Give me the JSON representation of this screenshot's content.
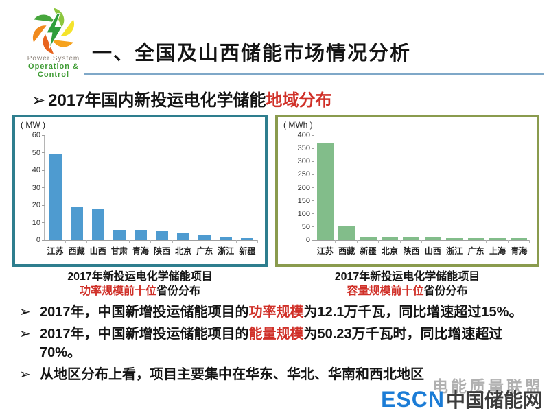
{
  "logo": {
    "brand_line1": "Power System",
    "brand_line2": "Operation & Control"
  },
  "header": {
    "title": "一、全国及山西储能市场情况分析"
  },
  "subtitle": {
    "arrow": "➢",
    "text_black": "2017年国内新投运电化学储能",
    "text_red": "地域分布"
  },
  "chart_data": [
    {
      "type": "bar",
      "unit": "( MW )",
      "categories": [
        "江苏",
        "西藏",
        "山西",
        "甘肃",
        "青海",
        "陕西",
        "北京",
        "广东",
        "浙江",
        "新疆"
      ],
      "values": [
        49,
        19,
        18,
        6,
        6,
        5,
        4,
        3,
        2,
        1
      ],
      "ylim": [
        0,
        60
      ],
      "yticks": [
        0,
        10,
        20,
        30,
        40,
        50,
        60
      ],
      "bar_color": "#4e9bd0",
      "border_color": "#2e7e8e",
      "caption": {
        "line1": "2017年新投运电化学储能项目",
        "red": "功率规模前十位",
        "black": "省份分布"
      }
    },
    {
      "type": "bar",
      "unit": "( MWh )",
      "categories": [
        "江苏",
        "西藏",
        "新疆",
        "北京",
        "陕西",
        "山西",
        "浙江",
        "广东",
        "上海",
        "青海"
      ],
      "values": [
        368,
        55,
        12,
        10,
        10,
        11,
        9,
        9,
        7,
        7
      ],
      "ylim": [
        0,
        400
      ],
      "yticks": [
        0,
        50,
        100,
        150,
        200,
        250,
        300,
        350,
        400
      ],
      "bar_color": "#82bd8a",
      "border_color": "#8a9b4e",
      "caption": {
        "line1": "2017年新投运电化学储能项目",
        "red": "容量规模前十位",
        "black": "省份分布"
      }
    }
  ],
  "bullet_arrow": "➢",
  "bullets": [
    {
      "pre": "2017年，中国新增投运储能项目的",
      "red": "功率规模",
      "post": "为12.1万千瓦，同比增速超过15%。"
    },
    {
      "pre": "2017年，中国新增投运储能项目的",
      "red": "能量规模",
      "post": "为50.23万千瓦时，同比增速超过70%。"
    },
    {
      "pre": "从地区分布上看，项目主要集中在华东、华北、华南和西北地区",
      "red": "",
      "post": ""
    }
  ],
  "footer": {
    "watermark": "电能质量联盟",
    "escn": "ESCN",
    "escn_cn": "中国储能网"
  },
  "colors": {
    "accent_red": "#d03028",
    "title_underline": "#7fa8c8",
    "escn_blue": "#1b7cd6"
  }
}
